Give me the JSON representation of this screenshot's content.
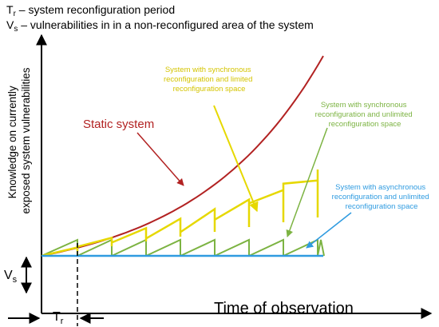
{
  "legend": {
    "tr_symbol": "T",
    "tr_sub": "r",
    "tr_text": " – system reconfiguration period",
    "vs_symbol": "V",
    "vs_sub": "s",
    "vs_text": " – vulnerabilities in in a non-reconfigured area of the system"
  },
  "axes": {
    "y_label_line1": "Knowledge on currently",
    "y_label_line2": "exposed system vulnerabilities",
    "x_label": "Time of observation"
  },
  "annotations": {
    "static": "Static system",
    "sync_limited": [
      "System with synchronous",
      "reconfiguration and limited",
      "reconfiguration space"
    ],
    "sync_unlimited": [
      "System with synchronous",
      "reconfiguration and unlimited",
      "reconfiguration space"
    ],
    "async_unlimited": [
      "System with asynchronous",
      "reconfiguration and unlimited",
      "reconfiguration space"
    ]
  },
  "markers": {
    "vs_symbol": "V",
    "vs_sub": "s",
    "tr_symbol": "T",
    "tr_sub": "r"
  },
  "colors": {
    "static": "#b22222",
    "sync_limited": "#e6d800",
    "sync_unlimited": "#7cb342",
    "async": "#2f9be0",
    "axis": "#000000"
  }
}
